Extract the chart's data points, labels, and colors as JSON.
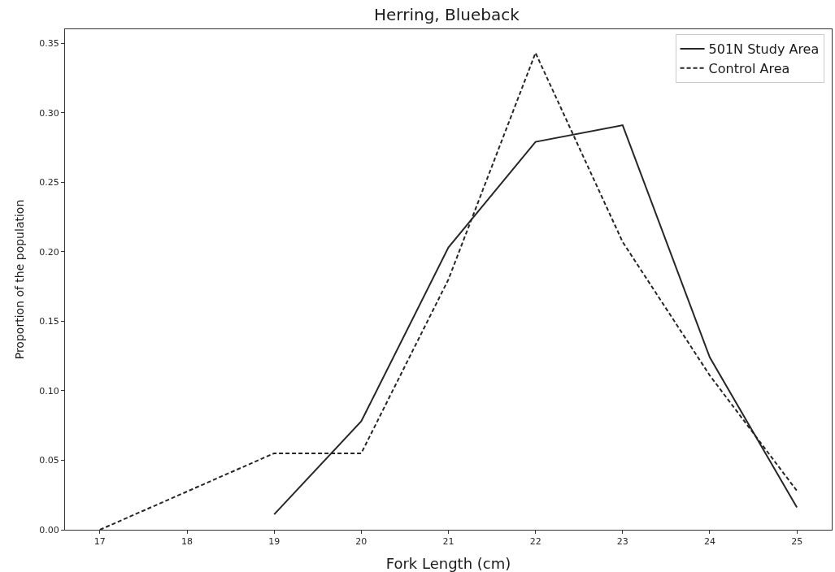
{
  "chart_data": {
    "type": "line",
    "title": "Herring, Blueback",
    "xlabel": "Fork Length (cm)",
    "ylabel": "Proportion of the population",
    "xlim": [
      16.6,
      25.4
    ],
    "xticks": [
      17,
      18,
      19,
      20,
      21,
      22,
      23,
      24,
      25
    ],
    "ylim": [
      0,
      0.36
    ],
    "yticks": [
      {
        "value": 0,
        "label": "0.00"
      },
      0.05,
      {
        "value": 0.1,
        "label": "0.10"
      },
      0.15,
      {
        "value": 0.2,
        "label": "0.20"
      },
      0.25,
      {
        "value": 0.3,
        "label": "0.30"
      },
      0.35
    ],
    "legend": "top right",
    "series": [
      {
        "name": "501N Study Area",
        "color": "#262626",
        "line_style": "solid",
        "x": [
          19,
          20,
          21,
          22,
          23,
          24,
          25
        ],
        "values": [
          0.011,
          0.078,
          0.203,
          0.279,
          0.291,
          0.124,
          0.016
        ]
      },
      {
        "name": "Control Area",
        "color": "#262626",
        "line_style": "dashed",
        "x": [
          17,
          19,
          20,
          21,
          22,
          23,
          24,
          25
        ],
        "values": [
          0,
          0.055,
          0.055,
          0.18,
          0.343,
          0.207,
          0.111,
          0.028
        ]
      }
    ]
  }
}
